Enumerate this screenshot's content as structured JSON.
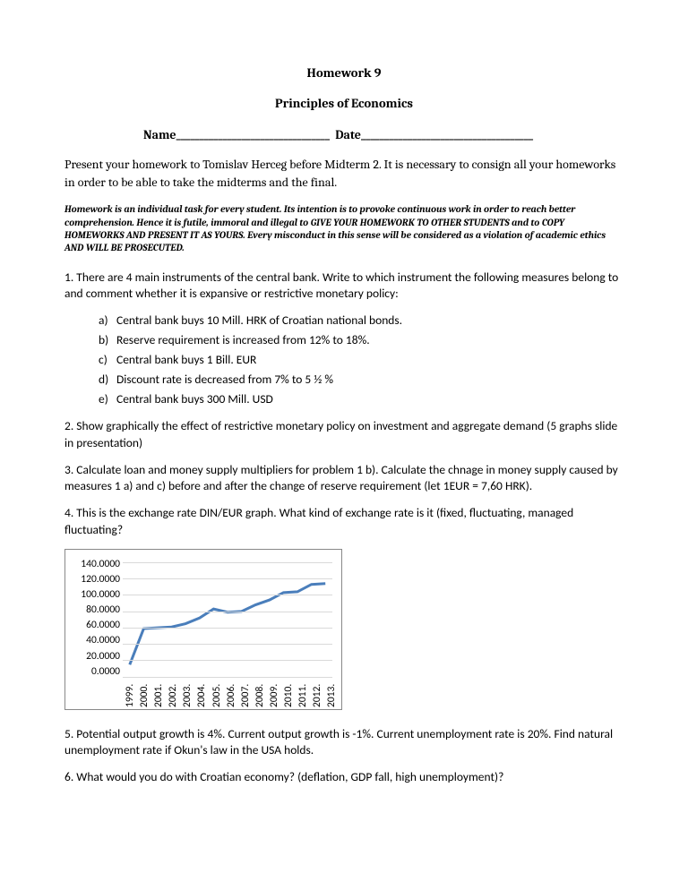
{
  "header": {
    "title": "Homework 9",
    "subtitle": "Principles of Economics",
    "name_label": "Name",
    "name_line": "_________________________________",
    "date_label": "Date",
    "date_line": "_____________________________________"
  },
  "intro": "Present your homework to Tomislav Herceg before Midterm 2. It is necessary to consign all your homeworks  in order to be able to take the midterms and the final.",
  "disclaimer": "Homework is an individual task for every student. Its intention is to provoke continuous work in order to reach better comprehension. Hence it is futile, immoral and illegal to GIVE YOUR HOMEWORK TO OTHER STUDENTS and to COPY HOMEWORKS AND PRESENT IT AS YOURS. Every misconduct in this sense will be considered as a violation of academic ethics AND WILL BE PROSECUTED.",
  "q1": {
    "text": "1. There are 4 main instruments of the central bank. Write to which instrument the following measures belong to and comment whether it is expansive or restrictive monetary policy:",
    "items": [
      {
        "letter": "a)",
        "text": "Central bank buys 10 Mill. HRK of Croatian national bonds."
      },
      {
        "letter": "b)",
        "text": "Reserve requirement is increased from 12% to 18%."
      },
      {
        "letter": "c)",
        "text": "Central bank buys 1 Bill. EUR"
      },
      {
        "letter": "d)",
        "text": "Discount rate is decreased from 7% to 5 ½ %"
      },
      {
        "letter": "e)",
        "text": "Central bank buys 300 Mill. USD"
      }
    ]
  },
  "q2": "2. Show graphically the effect of restrictive monetary policy on investment and aggregate demand (5 graphs slide in presentation)",
  "q3": "3. Calculate loan and money supply multipliers for problem 1 b). Calculate the chnage in money supply caused by measures 1 a) and c) before and after the change of reserve requirement (let 1EUR = 7,60 HRK).",
  "q4": "4. This is the exchange rate DIN/EUR graph. What kind of exchange rate is it (fixed, fluctuating, managed fluctuating?",
  "chart": {
    "type": "line",
    "line_color": "#4a7ebb",
    "line_width": 3,
    "grid_color": "#d9d9d9",
    "background_color": "#ffffff",
    "y_labels": [
      "140.0000",
      "120.0000",
      "100.0000",
      "80.0000",
      "60.0000",
      "40.0000",
      "20.0000",
      "0.0000"
    ],
    "y_max": 140,
    "y_min": 0,
    "x_labels": [
      "1999.",
      "2000.",
      "2001.",
      "2002.",
      "2003.",
      "2004.",
      "2005.",
      "2006.",
      "2007.",
      "2008.",
      "2009.",
      "2010.",
      "2011.",
      "2012.",
      "2013."
    ],
    "values": [
      15,
      59,
      60,
      61,
      65,
      72,
      83,
      79,
      80,
      88,
      94,
      103,
      104,
      113,
      114
    ]
  },
  "q5": "5. Potential output growth is 4%. Current output growth is -1%. Current unemployment rate is 20%. Find natural unemployment rate if Okun's law in the USA holds.",
  "q6": "6. What would you do with Croatian economy? (deflation, GDP fall, high unemployment)?"
}
